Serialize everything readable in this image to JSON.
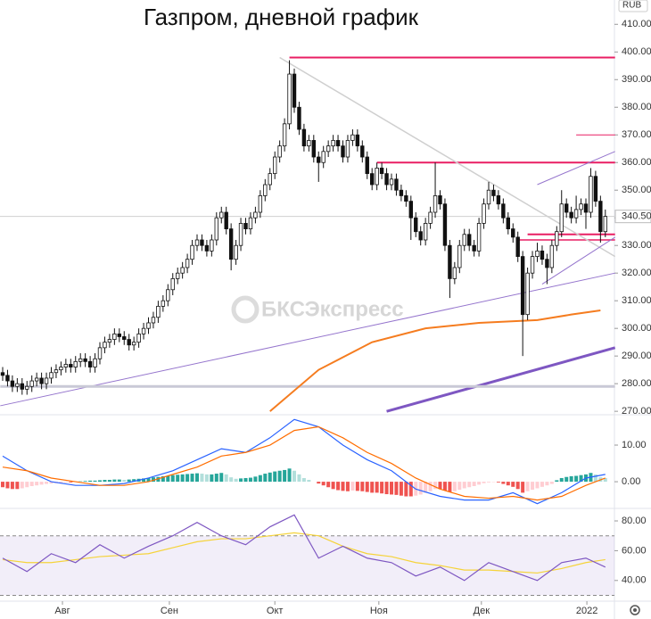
{
  "chart_data": {
    "type": "candlestick",
    "title": "Газпром, дневной график",
    "watermark": "БКСЭкспресс",
    "currency": "RUB",
    "ylim": [
      269.4,
      418.8
    ],
    "yticks": [
      {
        "value": 270,
        "label": "270.00"
      },
      {
        "value": 280,
        "label": "280.00"
      },
      {
        "value": 290,
        "label": "290.00"
      },
      {
        "value": 300,
        "label": "300.00"
      },
      {
        "value": 310,
        "label": "310.00"
      },
      {
        "value": 320,
        "label": "320.00"
      },
      {
        "value": 330,
        "label": "330.00"
      },
      {
        "value": 340,
        "label": "340.00"
      },
      {
        "value": 350,
        "label": "350.00"
      },
      {
        "value": 360,
        "label": "360.00"
      },
      {
        "value": 370,
        "label": "370.00"
      },
      {
        "value": 380,
        "label": "380.00"
      },
      {
        "value": 390,
        "label": "390.00"
      },
      {
        "value": 400,
        "label": "400.00"
      },
      {
        "value": 410,
        "label": "410.00"
      }
    ],
    "last_price": {
      "value": 340.5,
      "label": "340.50"
    },
    "xticks": [
      {
        "value": 12.3,
        "label": "Авг"
      },
      {
        "value": 34.3,
        "label": "Сен"
      },
      {
        "value": 56,
        "label": "Окт"
      },
      {
        "value": 77.4,
        "label": "Ноя"
      },
      {
        "value": 98.5,
        "label": "Дек"
      },
      {
        "value": 120.2,
        "label": "2022"
      }
    ],
    "up_color": "#ffffff",
    "down_color": "#111111",
    "candles": [
      [
        284,
        286,
        281,
        283
      ],
      [
        283,
        285,
        279,
        281
      ],
      [
        281,
        283,
        277,
        279
      ],
      [
        279,
        282,
        277,
        280
      ],
      [
        280,
        282,
        276,
        278
      ],
      [
        278,
        281,
        276,
        279
      ],
      [
        279,
        283,
        277,
        281
      ],
      [
        281,
        284,
        279,
        282
      ],
      [
        282,
        284,
        278,
        280
      ],
      [
        280,
        284,
        278,
        282
      ],
      [
        282,
        286,
        280,
        284
      ],
      [
        284,
        287,
        282,
        285
      ],
      [
        285,
        288,
        283,
        286
      ],
      [
        286,
        289,
        284,
        287
      ],
      [
        287,
        289,
        284,
        286
      ],
      [
        286,
        290,
        284,
        288
      ],
      [
        288,
        291,
        286,
        289
      ],
      [
        289,
        291,
        286,
        288
      ],
      [
        288,
        290,
        284,
        286
      ],
      [
        286,
        291,
        284,
        289
      ],
      [
        289,
        295,
        287,
        293
      ],
      [
        293,
        297,
        291,
        295
      ],
      [
        295,
        298,
        293,
        296
      ],
      [
        296,
        300,
        294,
        298
      ],
      [
        298,
        300,
        295,
        297
      ],
      [
        297,
        299,
        294,
        296
      ],
      [
        296,
        298,
        292,
        294
      ],
      [
        294,
        297,
        292,
        295
      ],
      [
        295,
        300,
        293,
        298
      ],
      [
        298,
        302,
        296,
        300
      ],
      [
        300,
        304,
        298,
        302
      ],
      [
        302,
        306,
        300,
        304
      ],
      [
        304,
        310,
        302,
        308
      ],
      [
        308,
        312,
        306,
        310
      ],
      [
        310,
        316,
        308,
        314
      ],
      [
        314,
        320,
        312,
        318
      ],
      [
        318,
        322,
        316,
        320
      ],
      [
        320,
        324,
        318,
        322
      ],
      [
        322,
        327,
        320,
        325
      ],
      [
        325,
        332,
        323,
        330
      ],
      [
        330,
        334,
        328,
        332
      ],
      [
        332,
        334,
        328,
        330
      ],
      [
        330,
        332,
        326,
        328
      ],
      [
        328,
        334,
        326,
        332
      ],
      [
        332,
        342,
        330,
        340
      ],
      [
        340,
        344,
        338,
        342
      ],
      [
        342,
        344,
        334,
        336
      ],
      [
        336,
        338,
        321,
        325
      ],
      [
        325,
        332,
        323,
        330
      ],
      [
        330,
        340,
        328,
        338
      ],
      [
        338,
        340,
        334,
        336
      ],
      [
        336,
        342,
        334,
        340
      ],
      [
        340,
        344,
        338,
        342
      ],
      [
        342,
        350,
        340,
        348
      ],
      [
        348,
        354,
        346,
        352
      ],
      [
        352,
        358,
        350,
        356
      ],
      [
        356,
        364,
        354,
        362
      ],
      [
        362,
        368,
        360,
        366
      ],
      [
        366,
        376,
        364,
        374
      ],
      [
        374,
        397,
        372,
        392
      ],
      [
        392,
        394,
        378,
        380
      ],
      [
        380,
        382,
        370,
        372
      ],
      [
        372,
        374,
        364,
        366
      ],
      [
        366,
        370,
        364,
        368
      ],
      [
        368,
        370,
        360,
        362
      ],
      [
        362,
        364,
        353,
        360
      ],
      [
        360,
        366,
        358,
        364
      ],
      [
        364,
        368,
        362,
        366
      ],
      [
        366,
        370,
        364,
        368
      ],
      [
        368,
        370,
        364,
        366
      ],
      [
        366,
        368,
        360,
        362
      ],
      [
        362,
        370,
        360,
        368
      ],
      [
        368,
        372,
        366,
        370
      ],
      [
        370,
        372,
        364,
        366
      ],
      [
        366,
        368,
        360,
        362
      ],
      [
        362,
        364,
        354,
        356
      ],
      [
        356,
        358,
        350,
        352
      ],
      [
        352,
        360,
        350,
        358
      ],
      [
        358,
        360,
        354,
        356
      ],
      [
        356,
        358,
        350,
        352
      ],
      [
        352,
        356,
        350,
        354
      ],
      [
        354,
        356,
        348,
        350
      ],
      [
        350,
        352,
        346,
        348
      ],
      [
        348,
        350,
        344,
        346
      ],
      [
        346,
        348,
        332,
        340
      ],
      [
        340,
        342,
        333,
        335
      ],
      [
        335,
        337,
        330,
        332
      ],
      [
        332,
        340,
        330,
        338
      ],
      [
        338,
        344,
        336,
        342
      ],
      [
        342,
        360,
        340,
        348
      ],
      [
        348,
        350,
        343,
        345
      ],
      [
        345,
        347,
        328,
        330
      ],
      [
        330,
        332,
        311,
        318
      ],
      [
        318,
        324,
        316,
        322
      ],
      [
        322,
        332,
        320,
        330
      ],
      [
        330,
        336,
        328,
        334
      ],
      [
        334,
        336,
        328,
        330
      ],
      [
        330,
        332,
        326,
        328
      ],
      [
        328,
        340,
        326,
        338
      ],
      [
        338,
        347,
        336,
        345
      ],
      [
        345,
        353,
        343,
        350
      ],
      [
        350,
        352,
        346,
        348
      ],
      [
        348,
        350,
        343,
        345
      ],
      [
        345,
        347,
        338,
        340
      ],
      [
        340,
        342,
        334,
        336
      ],
      [
        336,
        338,
        331,
        333
      ],
      [
        333,
        335,
        324,
        326
      ],
      [
        326,
        328,
        290,
        305
      ],
      [
        305,
        322,
        303,
        320
      ],
      [
        320,
        328,
        318,
        326
      ],
      [
        326,
        331,
        324,
        328
      ],
      [
        328,
        330,
        323,
        325
      ],
      [
        325,
        327,
        316,
        322
      ],
      [
        322,
        332,
        320,
        330
      ],
      [
        330,
        337,
        328,
        335
      ],
      [
        335,
        350,
        333,
        345
      ],
      [
        345,
        347,
        340,
        342
      ],
      [
        342,
        344,
        338,
        340
      ],
      [
        340,
        348,
        338,
        343
      ],
      [
        343,
        347,
        341,
        345
      ],
      [
        345,
        347,
        336,
        342
      ],
      [
        342,
        358,
        340,
        355
      ],
      [
        355,
        357,
        344,
        346
      ],
      [
        346,
        348,
        331,
        335
      ],
      [
        335,
        343,
        333,
        340.5
      ]
    ],
    "ma": {
      "color": "#f57c1f",
      "x": [
        55,
        65,
        76,
        87,
        98,
        110,
        117,
        123
      ],
      "values": [
        270,
        285,
        295,
        300,
        302,
        303,
        305,
        306.5
      ]
    },
    "lines": [
      {
        "color": "#e91e63",
        "width": 2,
        "points": [
          [
            59,
            398
          ],
          [
            126,
            398
          ]
        ]
      },
      {
        "color": "#e91e63",
        "width": 2,
        "points": [
          [
            77,
            360
          ],
          [
            126,
            360
          ]
        ]
      },
      {
        "color": "#e91e63",
        "width": 1,
        "points": [
          [
            118,
            370
          ],
          [
            126,
            370
          ]
        ]
      },
      {
        "color": "#e91e63",
        "width": 2,
        "points": [
          [
            108,
            334
          ],
          [
            126,
            334
          ]
        ]
      },
      {
        "color": "#e91e63",
        "width": 1.5,
        "points": [
          [
            106,
            332
          ],
          [
            126,
            332
          ]
        ]
      },
      {
        "color": "#cfcfcf",
        "width": 1.5,
        "points": [
          [
            57,
            398
          ],
          [
            126,
            326
          ]
        ]
      },
      {
        "color": "#9575cd",
        "width": 1,
        "points": [
          [
            -0.5,
            272
          ],
          [
            126,
            320
          ]
        ]
      },
      {
        "color": "#7e57c2",
        "width": 3,
        "points": [
          [
            79,
            270
          ],
          [
            126,
            293
          ]
        ]
      },
      {
        "color": "#9575cd",
        "width": 1,
        "points": [
          [
            110,
            352
          ],
          [
            126,
            364
          ]
        ]
      },
      {
        "color": "#9575cd",
        "width": 1,
        "points": [
          [
            111,
            316
          ],
          [
            126,
            333
          ]
        ]
      },
      {
        "color": "#c9c9d6",
        "width": 3,
        "points": [
          [
            -0.5,
            279
          ],
          [
            126,
            279
          ]
        ]
      }
    ],
    "macd": {
      "ylim": [
        -6.8,
        17.8
      ],
      "yticks": [
        {
          "value": 0,
          "label": "0.00"
        },
        {
          "value": 10,
          "label": "10.00"
        }
      ],
      "x": [
        0,
        5,
        10,
        15,
        20,
        25,
        30,
        35,
        40,
        45,
        50,
        55,
        60,
        65,
        70,
        75,
        80,
        85,
        90,
        95,
        100,
        105,
        110,
        115,
        120,
        124
      ],
      "line": {
        "color": "#2962ff",
        "values": [
          7,
          3,
          0,
          -1,
          -1,
          -0.5,
          1,
          3,
          6,
          9,
          8,
          12,
          17,
          15,
          10,
          6,
          3,
          -2,
          -4,
          -5,
          -5,
          -3,
          -6,
          -3,
          1,
          2
        ]
      },
      "signal": {
        "color": "#ff6d00",
        "values": [
          4,
          3,
          1,
          0,
          -1,
          -1,
          0,
          2,
          4,
          7,
          8,
          10,
          14,
          15,
          12,
          8,
          5,
          1,
          -2,
          -4,
          -4.5,
          -4,
          -5,
          -4,
          -1,
          1
        ]
      },
      "hist_colors": [
        "#26a69a",
        "#b2dfdb",
        "#ffcdd2",
        "#ef5350"
      ],
      "histogram": [
        -1.5,
        -1.8,
        -2,
        -2,
        -1.8,
        -1.5,
        -1.2,
        -1,
        -0.8,
        -0.6,
        -0.5,
        -0.4,
        -0.3,
        -0.2,
        -0.2,
        -0.1,
        0.1,
        0.2,
        0.3,
        0.3,
        0.4,
        0.5,
        0.5,
        0.6,
        0.6,
        0.5,
        0.6,
        0.7,
        0.8,
        0.9,
        1,
        1.2,
        1.3,
        1.5,
        1.6,
        1.8,
        1.9,
        2,
        2.1,
        2.2,
        2.3,
        2.2,
        2,
        2,
        2.2,
        2.4,
        2,
        1.2,
        0.8,
        0.9,
        1,
        1.1,
        1.4,
        1.8,
        2.2,
        2.5,
        2.8,
        3,
        3.2,
        3.6,
        3,
        2,
        1,
        0.5,
        0,
        -0.5,
        -1,
        -1.5,
        -2,
        -2.3,
        -2.5,
        -2.6,
        -2.4,
        -2.5,
        -2.6,
        -2.8,
        -3,
        -3,
        -3.2,
        -3.4,
        -3.5,
        -3.6,
        -3.8,
        -4,
        -4,
        -3.8,
        -3.5,
        -3,
        -2.6,
        -2,
        -2,
        -2.4,
        -2.8,
        -2.6,
        -2.2,
        -1.8,
        -1.5,
        -1.2,
        -0.8,
        -0.4,
        -0.2,
        -0.1,
        -0.2,
        -0.6,
        -1,
        -1.4,
        -2,
        -3,
        -2.6,
        -2.2,
        -1.8,
        -1.4,
        -1,
        -0.6,
        0.4,
        1,
        1.3,
        1.5,
        1.6,
        1.8,
        2,
        2.4,
        2,
        1.2,
        1
      ]
    },
    "rsi": {
      "ylim": [
        27.3,
        87.2
      ],
      "yticks": [
        {
          "value": 40,
          "label": "40.00"
        },
        {
          "value": 60,
          "label": "60.00"
        },
        {
          "value": 80,
          "label": "80.00"
        }
      ],
      "band": [
        30,
        70
      ],
      "band_color": "#7e57c2",
      "x": [
        0,
        5,
        10,
        15,
        20,
        25,
        30,
        35,
        40,
        45,
        50,
        55,
        60,
        65,
        70,
        75,
        80,
        85,
        90,
        95,
        100,
        105,
        110,
        115,
        120,
        124
      ],
      "line": {
        "color": "#7e57c2",
        "values": [
          55,
          46,
          58,
          52,
          64,
          55,
          63,
          70,
          79,
          70,
          64,
          76,
          84,
          55,
          63,
          55,
          52,
          43,
          49,
          40,
          52,
          46,
          40,
          52,
          55,
          49
        ]
      },
      "ma": {
        "color": "#f5d33a",
        "values": [
          54,
          52,
          52,
          54,
          56,
          57,
          58,
          62,
          66,
          68,
          68,
          70,
          72,
          70,
          63,
          58,
          56,
          52,
          50,
          47,
          47,
          46,
          45,
          48,
          52,
          54
        ]
      }
    }
  }
}
